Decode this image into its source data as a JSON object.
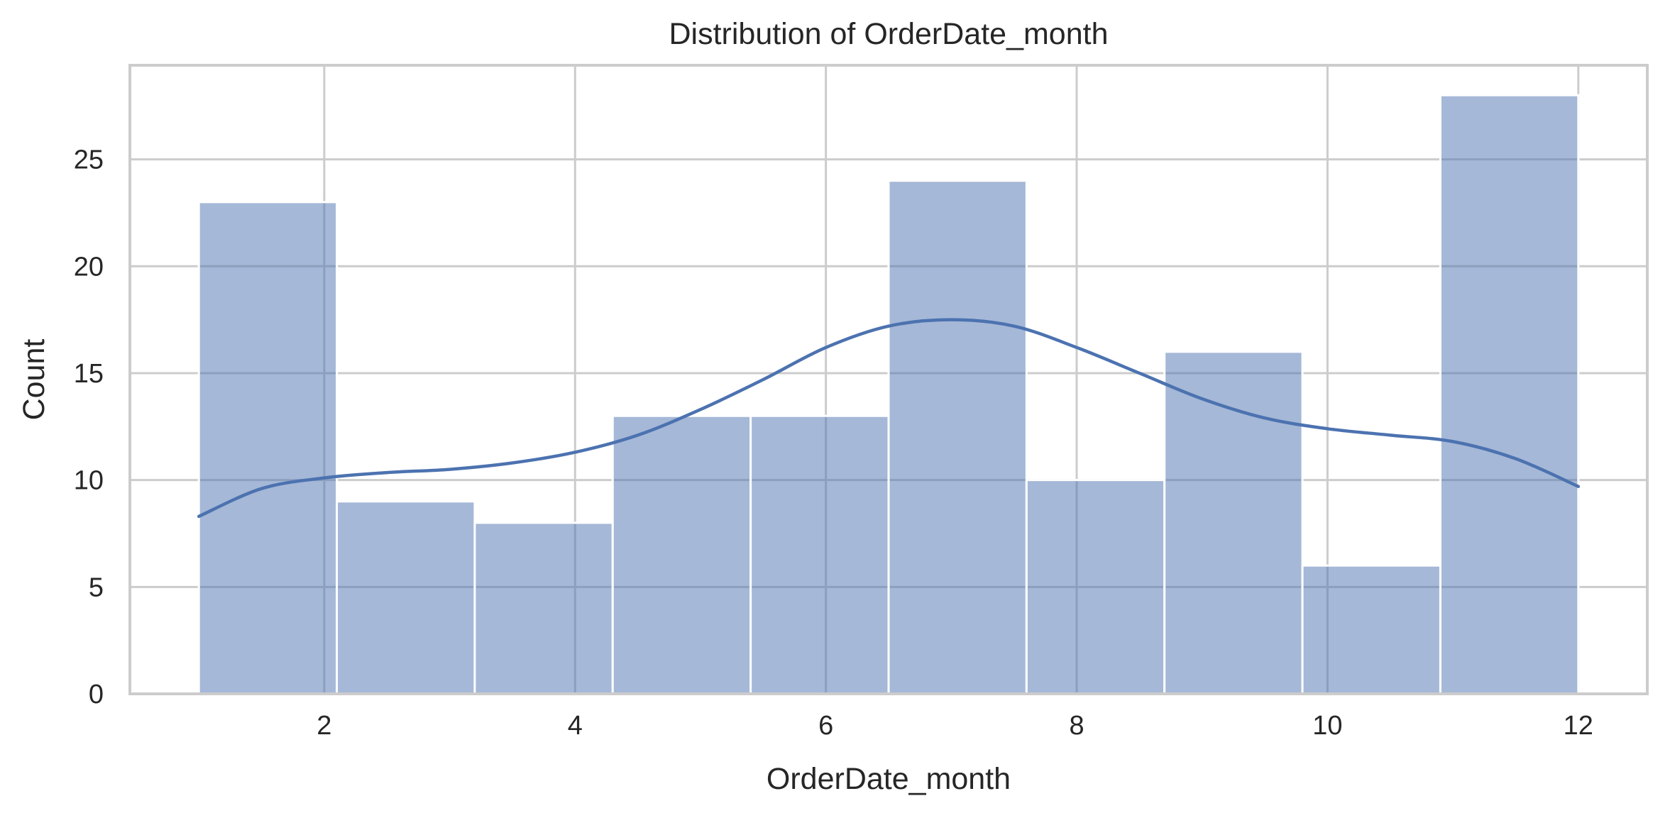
{
  "chart_data": {
    "type": "histogram",
    "title": "Distribution of OrderDate_month",
    "xlabel": "OrderDate_month",
    "ylabel": "Count",
    "xlim": [
      0.45,
      12.55
    ],
    "ylim": [
      0,
      29.4
    ],
    "xticks": [
      2,
      4,
      6,
      8,
      10,
      12
    ],
    "yticks": [
      0,
      5,
      10,
      15,
      20,
      25
    ],
    "grid": true,
    "bins": [
      {
        "start": 1.0,
        "end": 2.1,
        "count": 23
      },
      {
        "start": 2.1,
        "end": 3.2,
        "count": 9
      },
      {
        "start": 3.2,
        "end": 4.3,
        "count": 8
      },
      {
        "start": 4.3,
        "end": 5.4,
        "count": 13
      },
      {
        "start": 5.4,
        "end": 6.5,
        "count": 13
      },
      {
        "start": 6.5,
        "end": 7.6,
        "count": 24
      },
      {
        "start": 7.6,
        "end": 8.7,
        "count": 10
      },
      {
        "start": 8.7,
        "end": 9.8,
        "count": 16
      },
      {
        "start": 9.8,
        "end": 10.9,
        "count": 6
      },
      {
        "start": 10.9,
        "end": 12.0,
        "count": 28
      }
    ],
    "kde": {
      "x": [
        1.0,
        1.5,
        2.0,
        2.5,
        3.0,
        3.5,
        4.0,
        4.5,
        5.0,
        5.5,
        6.0,
        6.5,
        7.0,
        7.5,
        8.0,
        8.5,
        9.0,
        9.5,
        10.0,
        10.5,
        11.0,
        11.5,
        12.0
      ],
      "y": [
        8.3,
        9.6,
        10.1,
        10.35,
        10.5,
        10.8,
        11.3,
        12.1,
        13.3,
        14.7,
        16.2,
        17.2,
        17.5,
        17.2,
        16.2,
        15.0,
        13.8,
        12.9,
        12.4,
        12.1,
        11.8,
        11.0,
        9.7
      ]
    },
    "colors": {
      "bar": "#a6b8d7",
      "line": "#4c72b0"
    }
  }
}
